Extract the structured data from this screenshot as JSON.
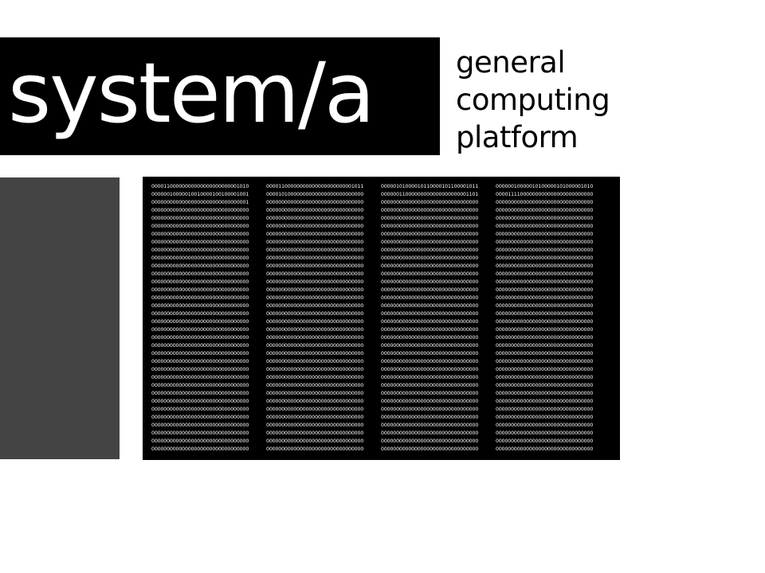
{
  "logo": {
    "text": "system/a"
  },
  "tagline": {
    "line1": "general",
    "line2": "computing",
    "line3": "platform"
  },
  "colors": {
    "logo_bg": "#000000",
    "logo_fg": "#ffffff",
    "side_panel": "#444444",
    "memory_bg": "#000000",
    "memory_fg": "#ffffff"
  },
  "memory": {
    "rows": [
      [
        "00001100000000000000000000001010",
        "00001100000000000000000000001011",
        "00000101000010110000101100001011",
        "00000010000010100000101000001010"
      ],
      [
        "00000010000010010000100100001001",
        "00001010000000000000000000000000",
        "00000011000000000000000000001101",
        "00001111000000000000000000000000"
      ],
      [
        "00000000000000000000000000000001",
        "00000000000000000000000000000000",
        "00000000000000000000000000000000",
        "00000000000000000000000000000000"
      ],
      [
        "00000000000000000000000000000000",
        "00000000000000000000000000000000",
        "00000000000000000000000000000000",
        "00000000000000000000000000000000"
      ],
      [
        "00000000000000000000000000000000",
        "00000000000000000000000000000000",
        "00000000000000000000000000000000",
        "00000000000000000000000000000000"
      ],
      [
        "00000000000000000000000000000000",
        "00000000000000000000000000000000",
        "00000000000000000000000000000000",
        "00000000000000000000000000000000"
      ],
      [
        "00000000000000000000000000000000",
        "00000000000000000000000000000000",
        "00000000000000000000000000000000",
        "00000000000000000000000000000000"
      ],
      [
        "00000000000000000000000000000000",
        "00000000000000000000000000000000",
        "00000000000000000000000000000000",
        "00000000000000000000000000000000"
      ],
      [
        "00000000000000000000000000000000",
        "00000000000000000000000000000000",
        "00000000000000000000000000000000",
        "00000000000000000000000000000000"
      ],
      [
        "00000000000000000000000000000000",
        "00000000000000000000000000000000",
        "00000000000000000000000000000000",
        "00000000000000000000000000000000"
      ],
      [
        "00000000000000000000000000000000",
        "00000000000000000000000000000000",
        "00000000000000000000000000000000",
        "00000000000000000000000000000000"
      ],
      [
        "00000000000000000000000000000000",
        "00000000000000000000000000000000",
        "00000000000000000000000000000000",
        "00000000000000000000000000000000"
      ],
      [
        "00000000000000000000000000000000",
        "00000000000000000000000000000000",
        "00000000000000000000000000000000",
        "00000000000000000000000000000000"
      ],
      [
        "00000000000000000000000000000000",
        "00000000000000000000000000000000",
        "00000000000000000000000000000000",
        "00000000000000000000000000000000"
      ],
      [
        "00000000000000000000000000000000",
        "00000000000000000000000000000000",
        "00000000000000000000000000000000",
        "00000000000000000000000000000000"
      ],
      [
        "00000000000000000000000000000000",
        "00000000000000000000000000000000",
        "00000000000000000000000000000000",
        "00000000000000000000000000000000"
      ],
      [
        "00000000000000000000000000000000",
        "00000000000000000000000000000000",
        "00000000000000000000000000000000",
        "00000000000000000000000000000000"
      ],
      [
        "00000000000000000000000000000000",
        "00000000000000000000000000000000",
        "00000000000000000000000000000000",
        "00000000000000000000000000000000"
      ],
      [
        "00000000000000000000000000000000",
        "00000000000000000000000000000000",
        "00000000000000000000000000000000",
        "00000000000000000000000000000000"
      ],
      [
        "00000000000000000000000000000000",
        "00000000000000000000000000000000",
        "00000000000000000000000000000000",
        "00000000000000000000000000000000"
      ],
      [
        "00000000000000000000000000000000",
        "00000000000000000000000000000000",
        "00000000000000000000000000000000",
        "00000000000000000000000000000000"
      ],
      [
        "00000000000000000000000000000000",
        "00000000000000000000000000000000",
        "00000000000000000000000000000000",
        "00000000000000000000000000000000"
      ],
      [
        "00000000000000000000000000000000",
        "00000000000000000000000000000000",
        "00000000000000000000000000000000",
        "00000000000000000000000000000000"
      ],
      [
        "00000000000000000000000000000000",
        "00000000000000000000000000000000",
        "00000000000000000000000000000000",
        "00000000000000000000000000000000"
      ],
      [
        "00000000000000000000000000000000",
        "00000000000000000000000000000000",
        "00000000000000000000000000000000",
        "00000000000000000000000000000000"
      ],
      [
        "00000000000000000000000000000000",
        "00000000000000000000000000000000",
        "00000000000000000000000000000000",
        "00000000000000000000000000000000"
      ],
      [
        "00000000000000000000000000000000",
        "00000000000000000000000000000000",
        "00000000000000000000000000000000",
        "00000000000000000000000000000000"
      ],
      [
        "00000000000000000000000000000000",
        "00000000000000000000000000000000",
        "00000000000000000000000000000000",
        "00000000000000000000000000000000"
      ],
      [
        "00000000000000000000000000000000",
        "00000000000000000000000000000000",
        "00000000000000000000000000000000",
        "00000000000000000000000000000000"
      ],
      [
        "00000000000000000000000000000000",
        "00000000000000000000000000000000",
        "00000000000000000000000000000000",
        "00000000000000000000000000000000"
      ],
      [
        "00000000000000000000000000000000",
        "00000000000000000000000000000000",
        "00000000000000000000000000000000",
        "00000000000000000000000000000000"
      ],
      [
        "00000000000000000000000000000000",
        "00000000000000000000000000000000",
        "00000000000000000000000000000000",
        "00000000000000000000000000000000"
      ],
      [
        "00000000000000000000000000000000",
        "00000000000000000000000000000000",
        "00000000000000000000000000000000",
        "00000000000000000000000000000000"
      ],
      [
        "00000000000000000000000000000000",
        "00000000000000000000000000000000",
        "00000000000000000000000000000000",
        "00000000000000000000000000000000"
      ]
    ]
  }
}
